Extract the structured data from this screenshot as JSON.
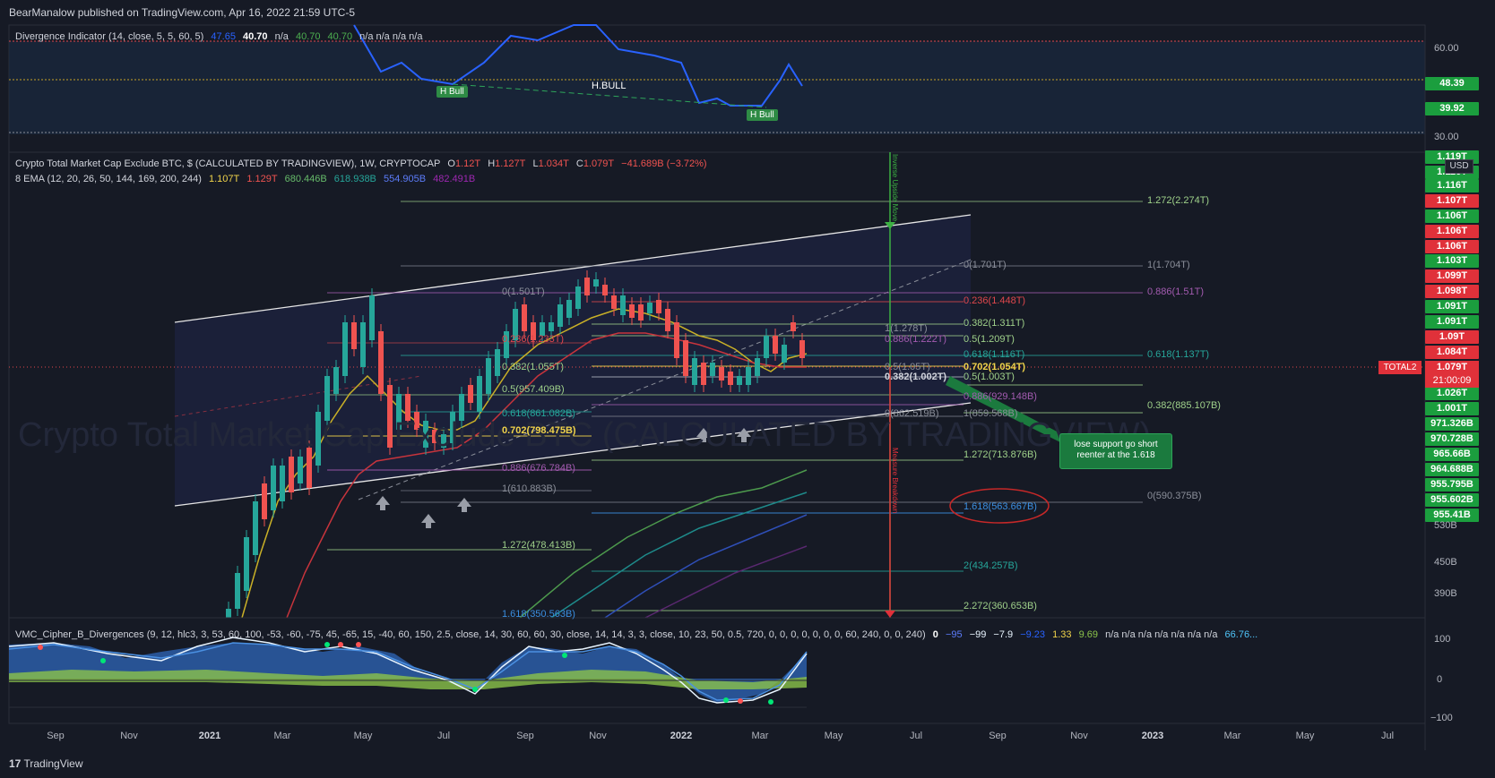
{
  "header": {
    "published": "BearManalow published on TradingView.com, Apr 16, 2022 21:59 UTC-5"
  },
  "indicator_top": {
    "label": "Divergence Indicator (14, close, 5, 5, 60, 5)",
    "v1": "47.65",
    "v2": "40.70",
    "v3": "n/a",
    "v4": "40.70",
    "v5": "40.70",
    "v6": "n/a n/a n/a n/a",
    "hbull_1": "H Bull",
    "hbull_2": "H.BULL",
    "hbull_3": "H Bull",
    "axis": [
      "60.00",
      "50.00",
      "30.00"
    ],
    "tag_green_1": "48.39",
    "tag_green_2": "39.92"
  },
  "main": {
    "title": "Crypto Total Market Cap Exclude BTC, $ (CALCULATED BY TRADINGVIEW), 1W, CRYPTOCAP",
    "o_label": "O",
    "o": "1.12T",
    "h_label": "H",
    "h": "1.127T",
    "l_label": "L",
    "l": "1.034T",
    "c_label": "C",
    "c": "1.079T",
    "change": "−41.689B (−3.72%)",
    "ema_label": "8 EMA (12, 20, 26, 50, 144, 169, 200, 244)",
    "ema_vals": [
      "1.107T",
      "1.129T",
      "680.446B",
      "618.938B",
      "554.905B",
      "482.491B"
    ],
    "watermark": "Crypto Total Market Cap Exclude BTC (CALCULATED BY TRADINGVIEW)",
    "currency": "USD",
    "symbol_tag": "TOTAL2",
    "last_price": "1.079T",
    "countdown": "21:00:09",
    "note": "lose support go short reenter at the 1.618",
    "vert_green": "Inverse Upside Move",
    "vert_red": "Measure Breakdown"
  },
  "price_tags": [
    {
      "t": "1.119T",
      "c": "#1b9e3e"
    },
    {
      "t": "1.116T",
      "c": "#1b9e3e"
    },
    {
      "t": "1.116T",
      "c": "#1b9e3e"
    },
    {
      "t": "1.107T",
      "c": "#e0313a"
    },
    {
      "t": "1.106T",
      "c": "#1b9e3e"
    },
    {
      "t": "1.106T",
      "c": "#e0313a"
    },
    {
      "t": "1.106T",
      "c": "#e0313a"
    },
    {
      "t": "1.103T",
      "c": "#1b9e3e"
    },
    {
      "t": "1.099T",
      "c": "#e0313a"
    },
    {
      "t": "1.098T",
      "c": "#e0313a"
    },
    {
      "t": "1.091T",
      "c": "#1b9e3e"
    },
    {
      "t": "1.091T",
      "c": "#1b9e3e"
    },
    {
      "t": "1.09T",
      "c": "#e0313a"
    },
    {
      "t": "1.084T",
      "c": "#e0313a"
    },
    {
      "t": "1.026T",
      "c": "#1b9e3e"
    },
    {
      "t": "1.001T",
      "c": "#1b9e3e"
    },
    {
      "t": "971.326B",
      "c": "#1b9e3e"
    },
    {
      "t": "970.728B",
      "c": "#1b9e3e"
    },
    {
      "t": "965.66B",
      "c": "#1b9e3e"
    },
    {
      "t": "964.688B",
      "c": "#1b9e3e"
    },
    {
      "t": "955.795B",
      "c": "#1b9e3e"
    },
    {
      "t": "955.602B",
      "c": "#1b9e3e"
    },
    {
      "t": "955.41B",
      "c": "#1b9e3e"
    }
  ],
  "axis_plain": [
    "530B",
    "450B",
    "390B"
  ],
  "fibs": [
    {
      "t": "1.272(2.274T)",
      "c": "#9fd18a"
    },
    {
      "t": "0(1.701T)",
      "c": "#8a8e99"
    },
    {
      "t": "1(1.704T)",
      "c": "#8a8e99"
    },
    {
      "t": "0.886(1.51T)",
      "c": "#a35bb0"
    },
    {
      "t": "0(1.501T)",
      "c": "#8a8e99"
    },
    {
      "t": "0.236(1.448T)",
      "c": "#e0474c"
    },
    {
      "t": "0.382(1.311T)",
      "c": "#9fd18a"
    },
    {
      "t": "1(1.278T)",
      "c": "#8a8e99"
    },
    {
      "t": "0.886(1.222T)",
      "c": "#a35bb0"
    },
    {
      "t": "0.5(1.209T)",
      "c": "#9fd18a"
    },
    {
      "t": "0.236(1.233T)",
      "c": "#e0474c"
    },
    {
      "t": "0.618(1.137T)",
      "c": "#26a69a"
    },
    {
      "t": "0.618(1.116T)",
      "c": "#26a69a"
    },
    {
      "t": "0.5(1.05T)",
      "c": "#8a8e99"
    },
    {
      "t": "0.702(1.054T)",
      "c": "#f0d34a"
    },
    {
      "t": "0.382(1.055T)",
      "c": "#9fd18a"
    },
    {
      "t": "0.382(1.002T)",
      "c": "#d1d4dc"
    },
    {
      "t": "0.5(1.003T)",
      "c": "#9fd18a"
    },
    {
      "t": "0.5(957.409B)",
      "c": "#9fd18a"
    },
    {
      "t": "0.886(929.148B)",
      "c": "#a35bb0"
    },
    {
      "t": "0.382(885.107B)",
      "c": "#9fd18a"
    },
    {
      "t": "0(862.519B)",
      "c": "#8a8e99"
    },
    {
      "t": "1(859.568B)",
      "c": "#8a8e99"
    },
    {
      "t": "0.618(861.082B)",
      "c": "#26a69a"
    },
    {
      "t": "0.702(798.475B)",
      "c": "#f0d34a"
    },
    {
      "t": "1.272(713.876B)",
      "c": "#9fd18a"
    },
    {
      "t": "0.886(676.784B)",
      "c": "#a35bb0"
    },
    {
      "t": "1(610.883B)",
      "c": "#8a8e99"
    },
    {
      "t": "0(590.375B)",
      "c": "#8a8e99"
    },
    {
      "t": "1.618(563.667B)",
      "c": "#3a8ee0"
    },
    {
      "t": "1.272(478.413B)",
      "c": "#9fd18a"
    },
    {
      "t": "2(434.257B)",
      "c": "#26a69a"
    },
    {
      "t": "2.272(360.653B)",
      "c": "#9fd18a"
    },
    {
      "t": "1.618(350.563B)",
      "c": "#3a8ee0"
    }
  ],
  "vmc": {
    "label": "VMC_Cipher_B_Divergences (9, 12, hlc3, 3, 53, 60, 100, -53, -60, -75, 45, -65, 15, -40, 60, 150, 2.5, close, 14, 30, 60, 60, 30, close, 14, 14, 3, 3, close, 10, 23, 50, 0.5, 720, 0, 0, 0, 0, 0, 0, 0, 60, 240, 0, 0, 240)",
    "vals": [
      "0",
      "−95",
      "−99",
      "−7.9",
      "−9.23",
      "1.33",
      "9.69",
      "n/a n/a n/a n/a n/a n/a n/a",
      "66.76..."
    ],
    "axis": [
      "100",
      "0",
      "−100"
    ]
  },
  "x_axis": [
    {
      "t": "Sep",
      "b": false
    },
    {
      "t": "Nov",
      "b": false
    },
    {
      "t": "2021",
      "b": true
    },
    {
      "t": "Mar",
      "b": false
    },
    {
      "t": "May",
      "b": false
    },
    {
      "t": "Jul",
      "b": false
    },
    {
      "t": "Sep",
      "b": false
    },
    {
      "t": "Nov",
      "b": false
    },
    {
      "t": "2022",
      "b": true
    },
    {
      "t": "Mar",
      "b": false
    },
    {
      "t": "May",
      "b": false
    },
    {
      "t": "Jul",
      "b": false
    },
    {
      "t": "Sep",
      "b": false
    },
    {
      "t": "Nov",
      "b": false
    },
    {
      "t": "2023",
      "b": true
    },
    {
      "t": "Mar",
      "b": false
    },
    {
      "t": "May",
      "b": false
    },
    {
      "t": "Jul",
      "b": false
    }
  ],
  "footer": {
    "brand": "TradingView"
  },
  "colors": {
    "bg": "#161a25",
    "up": "#26a69a",
    "down": "#ef5350",
    "green_tag": "#1b9e3e",
    "red_tag": "#e0313a"
  }
}
